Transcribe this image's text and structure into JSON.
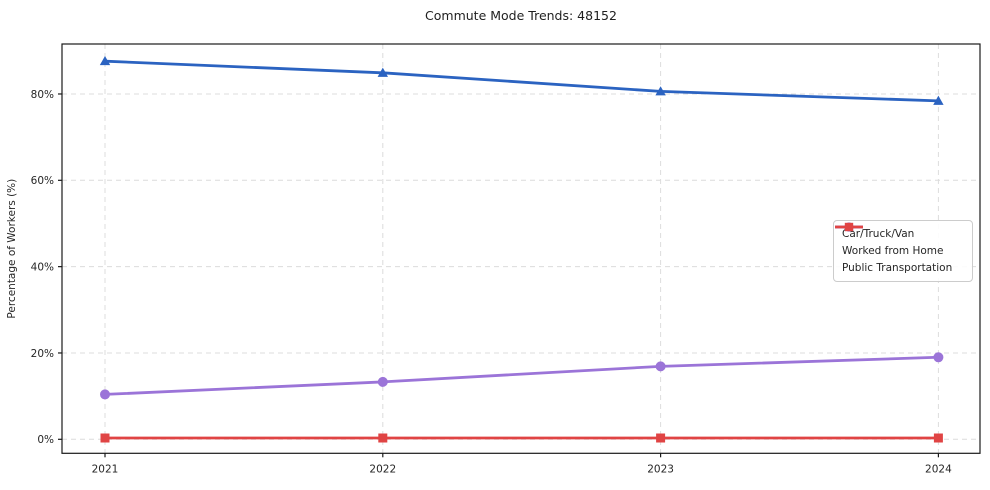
{
  "title": "Commute Mode Trends: 48152",
  "chart_data": {
    "type": "line",
    "title": "Commute Mode Trends: 48152",
    "xlabel": "",
    "ylabel": "Percentage of Workers (%)",
    "categories": [
      "2021",
      "2022",
      "2023",
      "2024"
    ],
    "y_ticks": [
      {
        "label": "0%",
        "value": 0
      },
      {
        "label": "20%",
        "value": 20
      },
      {
        "label": "40%",
        "value": 40
      },
      {
        "label": "60%",
        "value": 60
      },
      {
        "label": "80%",
        "value": 80
      }
    ],
    "ylim": [
      -3.2,
      91.6
    ],
    "grid": true,
    "grid_style": "dashed",
    "legend_position": "center right",
    "series": [
      {
        "name": "Car/Truck/Van",
        "marker": "triangle",
        "color": "#2b63c1",
        "values": [
          87.6,
          84.9,
          80.6,
          78.4
        ]
      },
      {
        "name": "Worked from Home",
        "marker": "circle",
        "color": "#9b74d8",
        "values": [
          10.4,
          13.3,
          16.9,
          19.0
        ]
      },
      {
        "name": "Public Transportation",
        "marker": "square",
        "color": "#e04444",
        "values": [
          0.3,
          0.3,
          0.3,
          0.3
        ]
      }
    ]
  },
  "colors": {
    "grid": "#dcdcdc",
    "spine": "#1a1a1a",
    "tick_text": "#262626",
    "title_text": "#1f1f1f",
    "background": "#ffffff"
  }
}
